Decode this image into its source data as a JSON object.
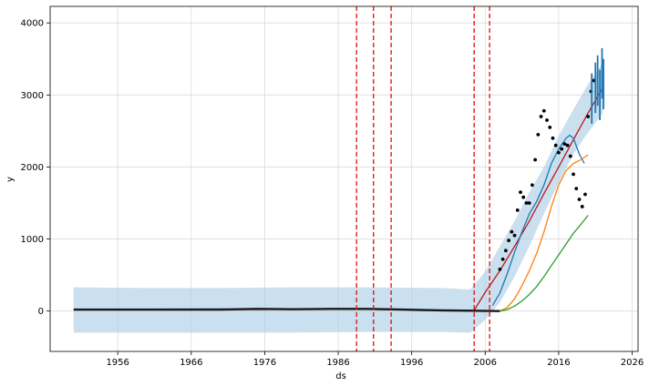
{
  "chart_data": {
    "type": "line",
    "xlabel": "ds",
    "ylabel": "y",
    "xlim": [
      1946.8,
      2026.8
    ],
    "ylim": [
      -560,
      4230
    ],
    "grid": true,
    "xticks": [
      1956,
      1966,
      1976,
      1986,
      1996,
      2006,
      2016,
      2026
    ],
    "yticks": [
      0,
      1000,
      2000,
      3000,
      4000
    ],
    "changepoints": [
      1988.5,
      1990.8,
      1993.2,
      2004.5,
      2006.6
    ],
    "series": [
      {
        "kind": "band",
        "color": "#a6cbe3",
        "x": [
          1950,
          1960,
          1970,
          1980,
          1990,
          2000,
          2004,
          2006,
          2008,
          2010,
          2012,
          2014,
          2016,
          2018,
          2020,
          2022
        ],
        "lower": [
          -300,
          -300,
          -300,
          -300,
          -290,
          -290,
          -300,
          -120,
          120,
          480,
          900,
          1350,
          1780,
          2180,
          2480,
          2750
        ],
        "upper": [
          330,
          320,
          320,
          330,
          330,
          320,
          300,
          550,
          900,
          1250,
          1650,
          2000,
          2430,
          2800,
          3150,
          3450
        ]
      },
      {
        "kind": "line",
        "color": "#c0161b",
        "x": [
          1950,
          1960,
          1970,
          1980,
          1990,
          2000,
          2004.5,
          2006,
          2008,
          2010,
          2012,
          2014,
          2016,
          2018,
          2020,
          2022
        ],
        "y": [
          20,
          20,
          20,
          25,
          25,
          10,
          10,
          260,
          560,
          900,
          1250,
          1630,
          2000,
          2380,
          2750,
          3100
        ]
      },
      {
        "kind": "line",
        "color": "#1f77b4",
        "x": [
          2007,
          2008,
          2009,
          2010,
          2011,
          2012,
          2013,
          2014,
          2015,
          2016,
          2017,
          2017.5,
          2018,
          2018.8,
          2019.5
        ],
        "y": [
          80,
          250,
          520,
          820,
          1100,
          1350,
          1520,
          1750,
          2050,
          2250,
          2400,
          2440,
          2400,
          2180,
          2050
        ]
      },
      {
        "kind": "line",
        "color": "#ff7f0e",
        "x": [
          2008,
          2009,
          2010,
          2011,
          2012,
          2013,
          2014,
          2015,
          2016,
          2017,
          2018,
          2019,
          2020
        ],
        "y": [
          0,
          50,
          170,
          350,
          560,
          800,
          1100,
          1450,
          1750,
          1950,
          2050,
          2100,
          2170
        ]
      },
      {
        "kind": "line",
        "color": "#2ca02c",
        "x": [
          1996,
          2000,
          2008,
          2009,
          2010,
          2011,
          2012,
          2013,
          2014,
          2015,
          2016,
          2017,
          2018,
          2019,
          2020
        ],
        "y": [
          10,
          5,
          0,
          20,
          70,
          140,
          230,
          340,
          480,
          630,
          780,
          930,
          1080,
          1200,
          1330
        ]
      },
      {
        "kind": "line",
        "color": "#1a1a1a",
        "x": [
          1950,
          1960,
          1970,
          1975,
          1980,
          1985,
          1990,
          1995,
          2000,
          2008
        ],
        "y": [
          20,
          20,
          22,
          30,
          25,
          30,
          30,
          20,
          10,
          0
        ]
      },
      {
        "kind": "points",
        "color": "#000000",
        "x": [
          2008,
          2008.4,
          2008.8,
          2009.2,
          2009.6,
          2010,
          2010.4,
          2010.8,
          2011.2,
          2011.6,
          2012,
          2012.4,
          2012.8,
          2013.2,
          2013.6,
          2014,
          2014.4,
          2014.8,
          2015.2,
          2015.6,
          2016,
          2016.4,
          2016.8,
          2017.2,
          2017.6,
          2018,
          2018.4,
          2018.8,
          2019.2,
          2019.6,
          2020,
          2020.4,
          2020.8
        ],
        "y": [
          580,
          720,
          840,
          980,
          1100,
          1050,
          1400,
          1650,
          1580,
          1500,
          1500,
          1750,
          2100,
          2450,
          2700,
          2780,
          2650,
          2550,
          2400,
          2300,
          2200,
          2250,
          2320,
          2300,
          2150,
          1900,
          1700,
          1550,
          1450,
          1620,
          2700,
          3050,
          3200
        ]
      },
      {
        "kind": "lines_blue",
        "color": "#1f77b4",
        "x": [
          2020.5,
          2021,
          2021.3,
          2021.6,
          2021.9,
          2022.1
        ],
        "y": [
          2950,
          3100,
          3200,
          3000,
          3300,
          3150
        ]
      }
    ]
  }
}
